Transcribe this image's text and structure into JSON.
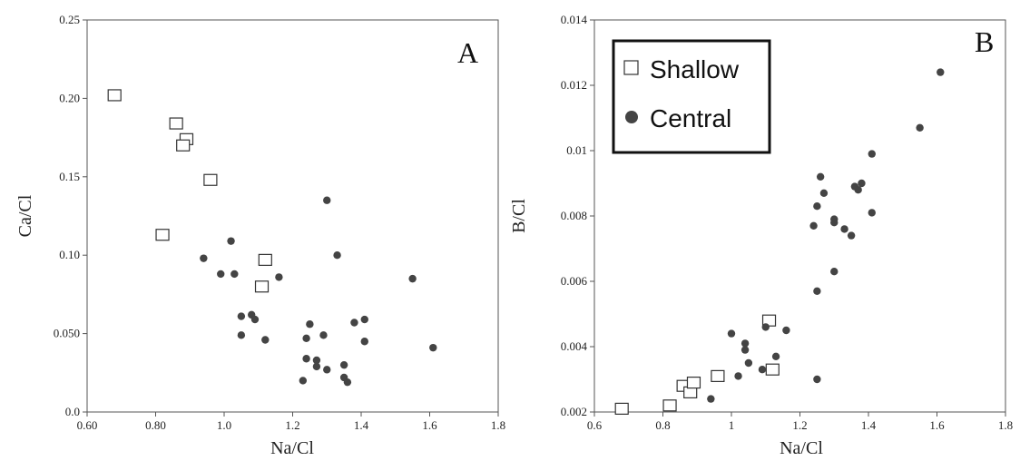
{
  "chart_data": [
    {
      "type": "scatter",
      "panel": "A",
      "title": "",
      "xlabel": "Na/Cl",
      "ylabel": "Ca/Cl",
      "xlim": [
        0.6,
        1.8
      ],
      "ylim": [
        0.0,
        0.25
      ],
      "xticks": [
        "0.60",
        "0.80",
        "1.0",
        "1.2",
        "1.4",
        "1.6",
        "1.8"
      ],
      "yticks": [
        "0.0",
        "0.050",
        "0.10",
        "0.15",
        "0.20",
        "0.25"
      ],
      "grid": false,
      "series": [
        {
          "name": "Shallow",
          "marker": "open-square",
          "points": [
            [
              0.68,
              0.202
            ],
            [
              0.86,
              0.184
            ],
            [
              0.89,
              0.174
            ],
            [
              0.88,
              0.17
            ],
            [
              0.96,
              0.148
            ],
            [
              0.82,
              0.113
            ],
            [
              1.12,
              0.097
            ],
            [
              1.11,
              0.08
            ]
          ]
        },
        {
          "name": "Central",
          "marker": "filled-circle",
          "points": [
            [
              0.94,
              0.098
            ],
            [
              1.02,
              0.109
            ],
            [
              0.99,
              0.088
            ],
            [
              1.03,
              0.088
            ],
            [
              1.16,
              0.086
            ],
            [
              1.05,
              0.061
            ],
            [
              1.08,
              0.062
            ],
            [
              1.09,
              0.059
            ],
            [
              1.05,
              0.049
            ],
            [
              1.12,
              0.046
            ],
            [
              1.3,
              0.135
            ],
            [
              1.33,
              0.1
            ],
            [
              1.55,
              0.085
            ],
            [
              1.61,
              0.041
            ],
            [
              1.25,
              0.056
            ],
            [
              1.24,
              0.047
            ],
            [
              1.29,
              0.049
            ],
            [
              1.38,
              0.057
            ],
            [
              1.41,
              0.059
            ],
            [
              1.41,
              0.045
            ],
            [
              1.24,
              0.034
            ],
            [
              1.27,
              0.033
            ],
            [
              1.27,
              0.029
            ],
            [
              1.3,
              0.027
            ],
            [
              1.35,
              0.03
            ],
            [
              1.35,
              0.022
            ],
            [
              1.36,
              0.019
            ],
            [
              1.23,
              0.02
            ]
          ]
        }
      ]
    },
    {
      "type": "scatter",
      "panel": "B",
      "title": "",
      "xlabel": "Na/Cl",
      "ylabel": "B/Cl",
      "xlim": [
        0.6,
        1.8
      ],
      "ylim": [
        0.002,
        0.014
      ],
      "xticks": [
        "0.6",
        "0.8",
        "1",
        "1.2",
        "1.4",
        "1.6",
        "1.8"
      ],
      "yticks": [
        "0.002",
        "0.004",
        "0.006",
        "0.008",
        "0.01",
        "0.012",
        "0.014"
      ],
      "grid": false,
      "legend": {
        "placement": "top-left",
        "entries": [
          {
            "label": "Shallow",
            "marker": "open-square"
          },
          {
            "label": "Central",
            "marker": "filled-circle"
          }
        ]
      },
      "series": [
        {
          "name": "Shallow",
          "marker": "open-square",
          "points": [
            [
              0.68,
              0.0021
            ],
            [
              0.82,
              0.0022
            ],
            [
              0.86,
              0.0028
            ],
            [
              0.88,
              0.0026
            ],
            [
              0.89,
              0.0029
            ],
            [
              0.96,
              0.0031
            ],
            [
              1.11,
              0.0048
            ],
            [
              1.12,
              0.0033
            ]
          ]
        },
        {
          "name": "Central",
          "marker": "filled-circle",
          "points": [
            [
              1.61,
              0.0124
            ],
            [
              1.55,
              0.0107
            ],
            [
              1.41,
              0.0099
            ],
            [
              1.38,
              0.009
            ],
            [
              1.36,
              0.0089
            ],
            [
              1.37,
              0.0088
            ],
            [
              1.26,
              0.0092
            ],
            [
              1.27,
              0.0087
            ],
            [
              1.25,
              0.0083
            ],
            [
              1.41,
              0.0081
            ],
            [
              1.3,
              0.0079
            ],
            [
              1.3,
              0.0078
            ],
            [
              1.24,
              0.0077
            ],
            [
              1.33,
              0.0076
            ],
            [
              1.35,
              0.0074
            ],
            [
              1.3,
              0.0063
            ],
            [
              1.25,
              0.0057
            ],
            [
              1.16,
              0.0045
            ],
            [
              1.1,
              0.0046
            ],
            [
              1.0,
              0.0044
            ],
            [
              1.04,
              0.0041
            ],
            [
              1.04,
              0.0039
            ],
            [
              1.13,
              0.0037
            ],
            [
              1.05,
              0.0035
            ],
            [
              1.09,
              0.0033
            ],
            [
              1.02,
              0.0031
            ],
            [
              1.25,
              0.003
            ],
            [
              0.94,
              0.0024
            ]
          ]
        }
      ]
    }
  ]
}
